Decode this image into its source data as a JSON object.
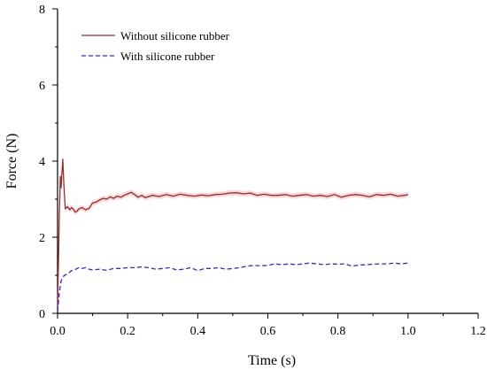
{
  "chart_data": {
    "type": "line",
    "title": "",
    "xlabel": "Time (s)",
    "ylabel": "Force (N)",
    "xlim": [
      0,
      1.2
    ],
    "ylim": [
      0,
      8
    ],
    "xticks": [
      "0.0",
      "0.2",
      "0.4",
      "0.6",
      "0.8",
      "1.0",
      "1.2"
    ],
    "yticks": [
      "0",
      "2",
      "4",
      "6",
      "8"
    ],
    "grid": false,
    "legend_position": "top-left",
    "series": [
      {
        "name": "Without silicone rubber",
        "color": "#9b2a2a",
        "band_color": "#f4c6c6",
        "line_style": "solid",
        "x": [
          0,
          0.005,
          0.008,
          0.01,
          0.015,
          0.018,
          0.022,
          0.028,
          0.035,
          0.04,
          0.045,
          0.05,
          0.055,
          0.06,
          0.07,
          0.08,
          0.09,
          0.1,
          0.11,
          0.12,
          0.13,
          0.14,
          0.15,
          0.16,
          0.17,
          0.18,
          0.19,
          0.2,
          0.21,
          0.22,
          0.23,
          0.24,
          0.25,
          0.27,
          0.29,
          0.31,
          0.33,
          0.35,
          0.37,
          0.39,
          0.41,
          0.43,
          0.45,
          0.47,
          0.49,
          0.51,
          0.53,
          0.55,
          0.57,
          0.59,
          0.61,
          0.63,
          0.65,
          0.67,
          0.69,
          0.71,
          0.73,
          0.75,
          0.77,
          0.79,
          0.81,
          0.83,
          0.85,
          0.87,
          0.89,
          0.91,
          0.93,
          0.95,
          0.97,
          0.99,
          1.0
        ],
        "values": [
          0.1,
          2.6,
          3.6,
          3.3,
          4.05,
          3.4,
          2.75,
          2.8,
          2.72,
          2.78,
          2.74,
          2.66,
          2.68,
          2.74,
          2.78,
          2.72,
          2.76,
          2.9,
          2.92,
          2.98,
          3.02,
          3.0,
          3.06,
          3.02,
          3.08,
          3.05,
          3.1,
          3.14,
          3.18,
          3.12,
          3.05,
          3.1,
          3.04,
          3.1,
          3.07,
          3.12,
          3.08,
          3.13,
          3.1,
          3.08,
          3.11,
          3.09,
          3.12,
          3.13,
          3.16,
          3.17,
          3.14,
          3.16,
          3.1,
          3.13,
          3.1,
          3.1,
          3.12,
          3.08,
          3.1,
          3.12,
          3.08,
          3.1,
          3.07,
          3.12,
          3.05,
          3.1,
          3.12,
          3.1,
          3.06,
          3.12,
          3.1,
          3.13,
          3.08,
          3.1,
          3.12
        ]
      },
      {
        "name": "With silicone rubber",
        "color": "#2b2bd6",
        "line_style": "dashed",
        "x": [
          0,
          0.005,
          0.01,
          0.015,
          0.02,
          0.03,
          0.04,
          0.05,
          0.06,
          0.07,
          0.08,
          0.09,
          0.1,
          0.12,
          0.14,
          0.16,
          0.18,
          0.2,
          0.22,
          0.24,
          0.26,
          0.28,
          0.3,
          0.32,
          0.34,
          0.36,
          0.38,
          0.4,
          0.42,
          0.44,
          0.46,
          0.48,
          0.5,
          0.52,
          0.54,
          0.56,
          0.58,
          0.6,
          0.62,
          0.64,
          0.66,
          0.68,
          0.7,
          0.72,
          0.74,
          0.76,
          0.78,
          0.8,
          0.82,
          0.84,
          0.86,
          0.88,
          0.9,
          0.92,
          0.94,
          0.96,
          0.98,
          1.0
        ],
        "values": [
          0.05,
          0.55,
          0.85,
          0.95,
          1.0,
          1.05,
          1.12,
          1.15,
          1.2,
          1.18,
          1.2,
          1.16,
          1.14,
          1.16,
          1.13,
          1.18,
          1.18,
          1.2,
          1.2,
          1.22,
          1.2,
          1.16,
          1.18,
          1.2,
          1.14,
          1.16,
          1.2,
          1.12,
          1.18,
          1.18,
          1.2,
          1.16,
          1.18,
          1.2,
          1.24,
          1.26,
          1.25,
          1.26,
          1.3,
          1.28,
          1.3,
          1.28,
          1.3,
          1.32,
          1.3,
          1.28,
          1.3,
          1.29,
          1.3,
          1.24,
          1.27,
          1.28,
          1.29,
          1.3,
          1.3,
          1.32,
          1.3,
          1.32
        ]
      }
    ]
  }
}
